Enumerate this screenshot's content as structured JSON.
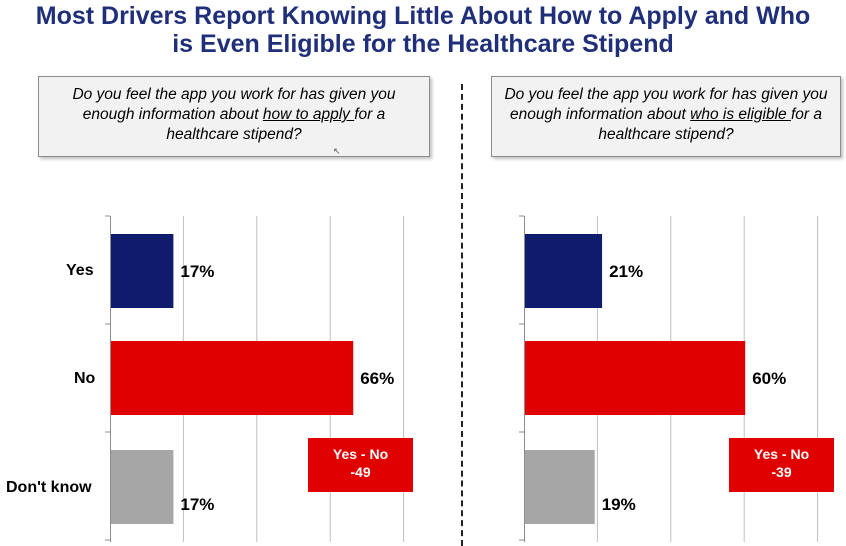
{
  "title": {
    "line1": "Most Drivers Report Knowing Little About How to Apply and Who",
    "line2": "is Even Eligible for the Healthcare Stipend"
  },
  "left_question": {
    "pre": "Do you feel the app you work for has given you enough information about ",
    "underlined": "how to apply ",
    "post": "for a healthcare stipend?"
  },
  "right_question": {
    "pre": "Do you feel the app you work for has given you enough information about ",
    "underlined": "who is eligible ",
    "post": "for a healthcare stipend?"
  },
  "categories": [
    "Yes",
    "No",
    "Don't know"
  ],
  "colors": {
    "yes": "#0f1b6b",
    "no": "#e00000",
    "dont_know": "#a6a6a6",
    "title": "#1f2f7a"
  },
  "callouts": {
    "left": {
      "line1": "Yes - No",
      "line2": "-49"
    },
    "right": {
      "line1": "Yes - No",
      "line2": "-39"
    }
  },
  "chart_data": [
    {
      "type": "bar",
      "orientation": "horizontal",
      "categories": [
        "Yes",
        "No",
        "Don't know"
      ],
      "values": [
        17,
        66,
        17
      ],
      "labels": [
        "17%",
        "66%",
        "17%"
      ],
      "xlim": [
        0,
        80
      ],
      "grid": true
    },
    {
      "type": "bar",
      "orientation": "horizontal",
      "categories": [
        "Yes",
        "No",
        "Don't know"
      ],
      "values": [
        21,
        60,
        19
      ],
      "labels": [
        "21%",
        "60%",
        "19%"
      ],
      "xlim": [
        0,
        80
      ],
      "grid": true
    }
  ]
}
